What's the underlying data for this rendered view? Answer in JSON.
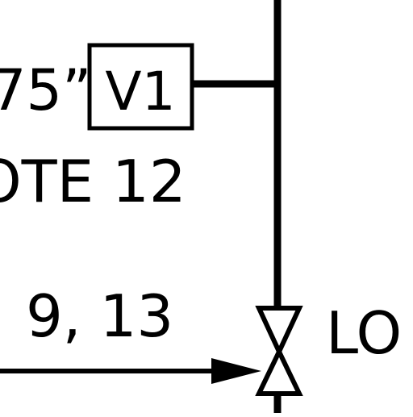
{
  "diagram": {
    "text_quote_value": "75”",
    "tag_label": "V1",
    "note_text": "OTE 12",
    "ref_numbers": "9, 13",
    "valve_state_label": "LO"
  },
  "colors": {
    "line": "#000000",
    "background": "#ffffff"
  }
}
